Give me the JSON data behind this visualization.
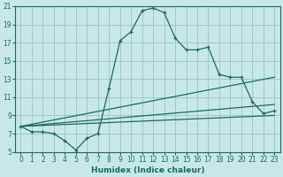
{
  "xlabel": "Humidex (Indice chaleur)",
  "bg_color": "#c8e8e8",
  "grid_color": "#a0c8c8",
  "line_color": "#1a6b5a",
  "xlim": [
    -0.5,
    23.5
  ],
  "ylim": [
    5,
    21
  ],
  "xtick_labels": [
    "0",
    "1",
    "2",
    "3",
    "4",
    "5",
    "6",
    "7",
    "8",
    "9",
    "10",
    "11",
    "12",
    "13",
    "14",
    "15",
    "16",
    "17",
    "18",
    "19",
    "20",
    "21",
    "22",
    "23"
  ],
  "xticks": [
    0,
    1,
    2,
    3,
    4,
    5,
    6,
    7,
    8,
    9,
    10,
    11,
    12,
    13,
    14,
    15,
    16,
    17,
    18,
    19,
    20,
    21,
    22,
    23
  ],
  "yticks": [
    5,
    7,
    9,
    11,
    13,
    15,
    17,
    19,
    21
  ],
  "main_x": [
    0,
    1,
    2,
    3,
    4,
    5,
    6,
    7,
    8,
    9,
    10,
    11,
    12,
    13,
    14,
    15,
    16,
    17,
    18,
    19,
    20,
    21,
    22,
    23
  ],
  "main_y": [
    7.8,
    7.2,
    7.2,
    7.0,
    6.2,
    5.2,
    6.5,
    7.0,
    12.0,
    17.2,
    18.2,
    20.5,
    20.8,
    20.3,
    17.5,
    16.2,
    16.2,
    16.5,
    13.5,
    13.2,
    13.2,
    10.5,
    9.2,
    9.5
  ],
  "line1_x": [
    0,
    23
  ],
  "line1_y": [
    7.8,
    13.2
  ],
  "line2_x": [
    0,
    23
  ],
  "line2_y": [
    7.8,
    10.2
  ],
  "line3_x": [
    0,
    23
  ],
  "line3_y": [
    7.8,
    9.0
  ]
}
